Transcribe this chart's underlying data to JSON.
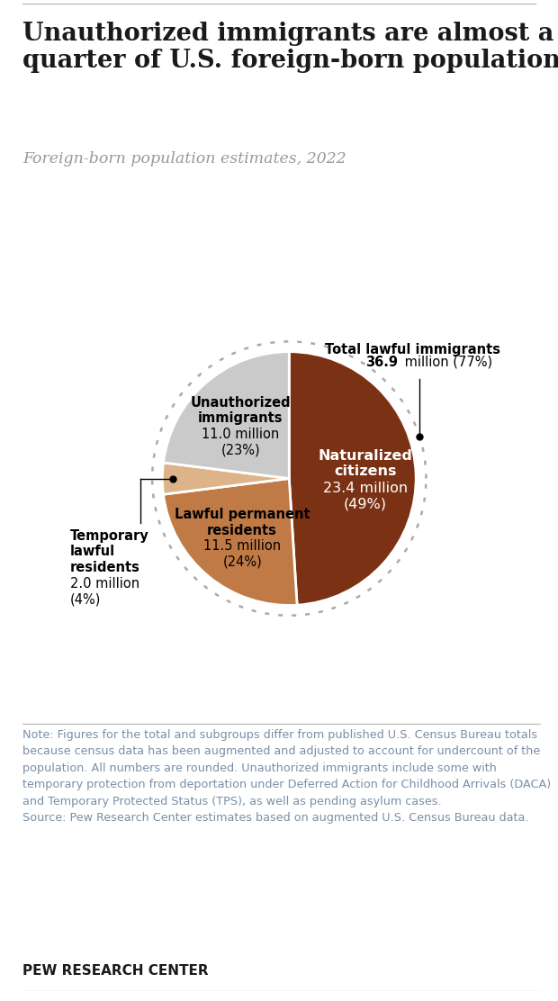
{
  "title": "Unauthorized immigrants are almost a\nquarter of U.S. foreign-born population",
  "subtitle": "Foreign-born population estimates, 2022",
  "segments": [
    {
      "label": "Naturalized\ncitizens",
      "value": 23.4,
      "pct": 49,
      "color": "#7B3214"
    },
    {
      "label": "Lawful permanent\nresidents",
      "value": 11.5,
      "pct": 24,
      "color": "#C07A45"
    },
    {
      "label": "Temporary\nlawful\nresidents",
      "value": 2.0,
      "pct": 4,
      "color": "#DDB48A"
    },
    {
      "label": "Unauthorized\nimmigrants",
      "value": 11.0,
      "pct": 23,
      "color": "#CACACA"
    }
  ],
  "note_text": "Note: Figures for the total and subgroups differ from published U.S. Census Bureau totals because census data has been augmented and adjusted to account for undercount of the population. All numbers are rounded. Unauthorized immigrants include some with temporary protection from deportation under Deferred Action for Childhood Arrivals (DACA) and Temporary Protected Status (TPS), as well as pending asylum cases.\nSource: Pew Research Center estimates based on augmented U.S. Census Bureau data.",
  "source_label": "PEW RESEARCH CENTER",
  "bg_color": "#FFFFFF",
  "text_color": "#1a1a1a",
  "note_color": "#7A8FA6",
  "subtitle_color": "#999999",
  "dotted_circle_color": "#AAAAAA"
}
